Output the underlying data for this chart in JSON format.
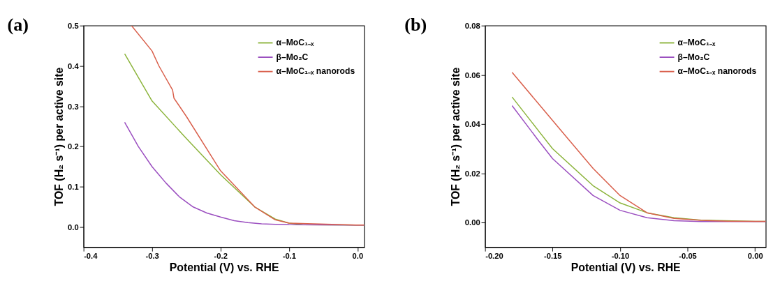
{
  "chart_data": [
    {
      "type": "line",
      "title": "(a)",
      "xlabel": "Potential (V) vs. RHE",
      "ylabel": "TOF  (H₂ s⁻¹) per active site",
      "xlim": [
        -0.4,
        0.01
      ],
      "xticks": [
        -0.4,
        -0.3,
        -0.2,
        -0.1,
        {
          "value": 0,
          "label": "0.0"
        }
      ],
      "ylim": [
        -0.05,
        0.5
      ],
      "yticks": [
        {
          "value": 0,
          "label": "0.0"
        },
        0.1,
        0.2,
        0.3,
        0.4,
        0.5
      ],
      "grid": false,
      "legend": "top right",
      "marker": "none",
      "line_style": "solid",
      "series": [
        {
          "name": "α–MoC₁₋ₓ",
          "color": "#8cb43c",
          "x": [
            -0.34,
            -0.3,
            -0.25,
            -0.2,
            -0.15,
            -0.12,
            -0.1,
            -0.08,
            0,
            0.01
          ],
          "values": [
            0.43,
            0.313,
            0.22,
            0.13,
            0.05,
            0.02,
            0.01,
            0.006,
            0.005,
            0.005
          ]
        },
        {
          "name": "β–Mo₂C",
          "color": "#9b4fc0",
          "x": [
            -0.34,
            -0.32,
            -0.3,
            -0.28,
            -0.26,
            -0.24,
            -0.22,
            -0.2,
            -0.18,
            -0.16,
            -0.14,
            -0.12,
            -0.1,
            0,
            0.01
          ],
          "values": [
            0.26,
            0.2,
            0.15,
            0.11,
            0.075,
            0.05,
            0.035,
            0.025,
            0.016,
            0.011,
            0.008,
            0.007,
            0.006,
            0.005,
            0.005
          ]
        },
        {
          "name": "α–MoC₁₋ₓ nanorods",
          "color": "#d9604c",
          "x": [
            -0.33,
            -0.3,
            -0.29,
            -0.27,
            -0.268,
            -0.25,
            -0.2,
            -0.15,
            -0.12,
            -0.1,
            0,
            0.01
          ],
          "values": [
            0.5,
            0.437,
            0.4,
            0.34,
            0.32,
            0.275,
            0.14,
            0.05,
            0.018,
            0.01,
            0.005,
            0.005
          ]
        }
      ]
    },
    {
      "type": "line",
      "title": "(b)",
      "xlabel": "Potential (V) vs. RHE",
      "ylabel": "TOF  (H₂ s⁻¹) per active site",
      "xlim": [
        -0.2,
        0.008
      ],
      "xticks": [
        {
          "value": -0.2,
          "label": "-0.20"
        },
        -0.15,
        {
          "value": -0.1,
          "label": "-0.10"
        },
        -0.05,
        {
          "value": 0,
          "label": "0.00"
        }
      ],
      "ylim": [
        -0.01,
        0.08
      ],
      "yticks": [
        {
          "value": 0,
          "label": "0.00"
        },
        0.02,
        0.04,
        0.06,
        0.08
      ],
      "grid": false,
      "legend": "top right",
      "marker": "none",
      "line_style": "solid",
      "series": [
        {
          "name": "α–MoC₁₋ₓ",
          "color": "#8cb43c",
          "x": [
            -0.18,
            -0.16,
            -0.15,
            -0.12,
            -0.1,
            -0.08,
            -0.06,
            -0.04,
            0,
            0.008
          ],
          "values": [
            0.051,
            0.037,
            0.03,
            0.015,
            0.008,
            0.004,
            0.002,
            0.001,
            0.0005,
            0.0005
          ]
        },
        {
          "name": "β–Mo₂C",
          "color": "#9b4fc0",
          "x": [
            -0.18,
            -0.16,
            -0.15,
            -0.12,
            -0.1,
            -0.08,
            -0.06,
            -0.04,
            0,
            0.008
          ],
          "values": [
            0.0475,
            0.033,
            0.026,
            0.011,
            0.005,
            0.002,
            0.0008,
            0.0004,
            0.0004,
            0.0004
          ]
        },
        {
          "name": "α–MoC₁₋ₓ nanorods",
          "color": "#d9604c",
          "x": [
            -0.18,
            -0.16,
            -0.14,
            -0.12,
            -0.1,
            -0.08,
            -0.06,
            -0.04,
            -0.02,
            0,
            0.008
          ],
          "values": [
            0.061,
            0.048,
            0.035,
            0.022,
            0.011,
            0.004,
            0.0017,
            0.0009,
            0.0006,
            0.0005,
            0.0005
          ]
        }
      ]
    }
  ]
}
